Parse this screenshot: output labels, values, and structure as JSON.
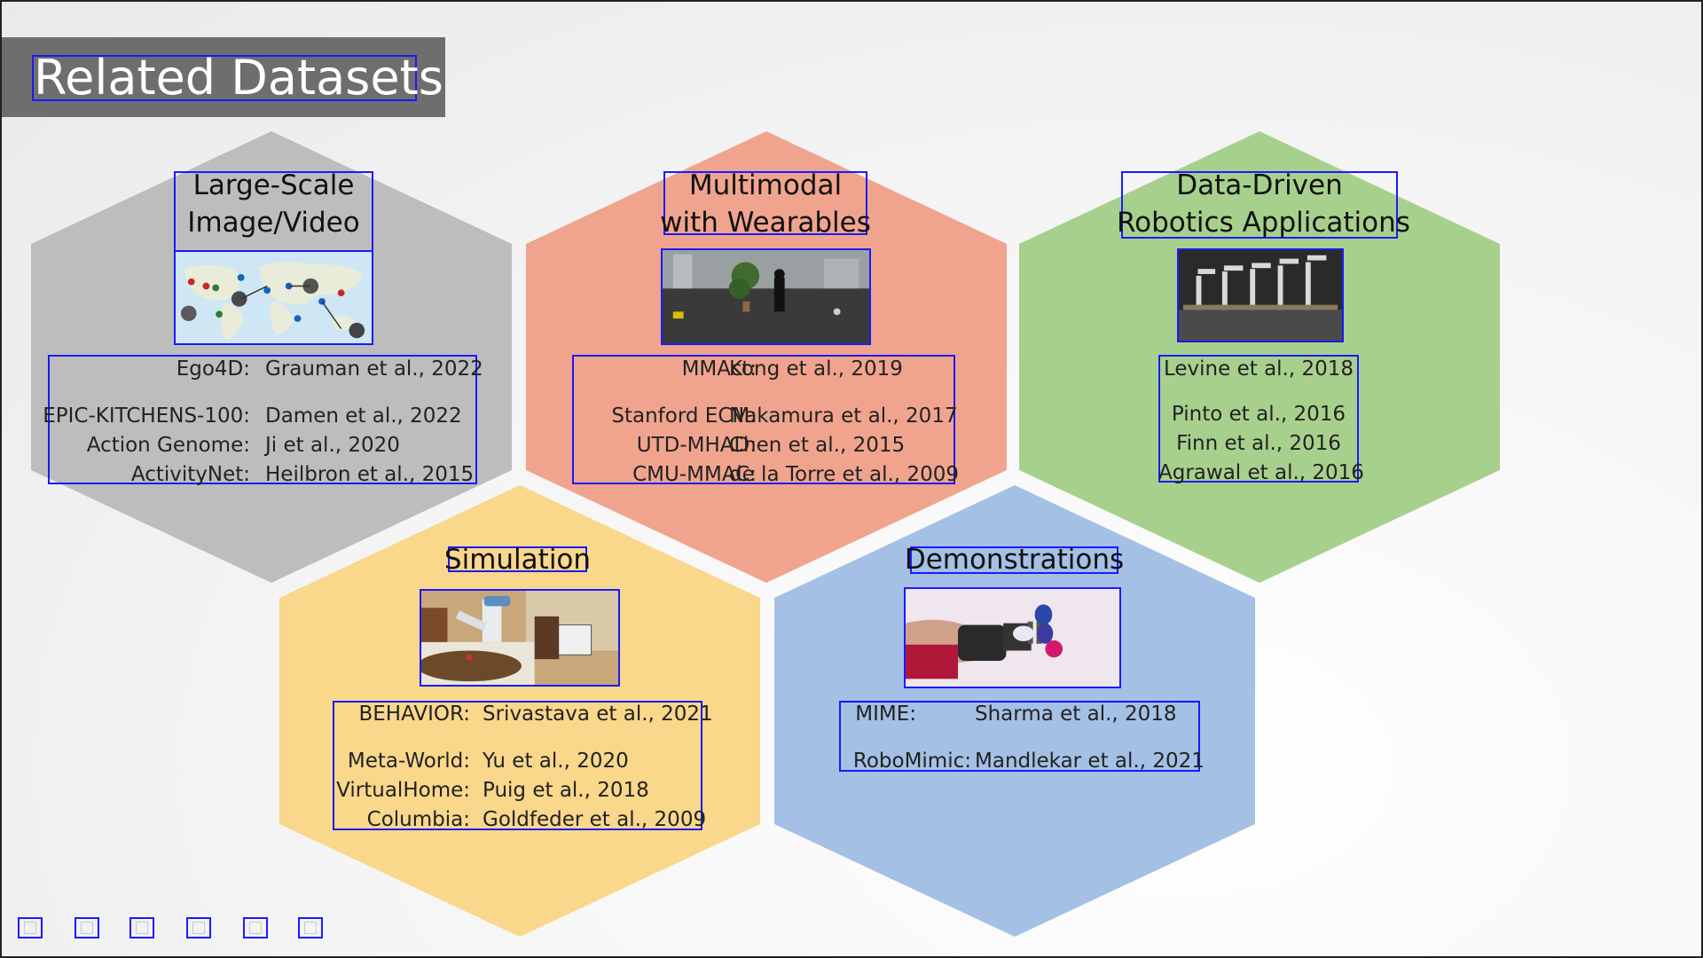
{
  "slide": {
    "title": "Related Datasets",
    "colors": {
      "gray_hex": "#bdbdbd",
      "red_hex": "#f0a48e",
      "green_hex": "#a8d08d",
      "yellow_hex": "#f9d78b",
      "blue_hex": "#a4c0e4",
      "box_border": "#1a1aff"
    }
  },
  "hexes": {
    "large_scale": {
      "title_line1": "Large-Scale",
      "title_line2": "Image/Video",
      "image": "world-map-with-location-pins",
      "refs": [
        {
          "name": "Ego4D:",
          "cite": "Grauman et al., 2022"
        },
        {
          "name": "EPIC-KITCHENS-100:",
          "cite": "Damen et al., 2022"
        },
        {
          "name": "Action Genome:",
          "cite": "Ji et al., 2020"
        },
        {
          "name": "ActivityNet:",
          "cite": "Heilbron et al., 2015"
        }
      ]
    },
    "multimodal": {
      "title_line1": "Multimodal",
      "title_line2": "with Wearables",
      "image": "person-walking-in-office-room",
      "refs": [
        {
          "name": "MMAct:",
          "cite": "Kong et al., 2019"
        },
        {
          "name": "Stanford ECM:",
          "cite": "Nakamura et al., 2017"
        },
        {
          "name": "UTD-MHAD:",
          "cite": "Chen et al., 2015"
        },
        {
          "name": "CMU-MMAC:",
          "cite": "de la Torre et al., 2009"
        }
      ]
    },
    "robotics": {
      "title_line1": "Data-Driven",
      "title_line2": "Robotics Applications",
      "image": "row-of-robot-arms",
      "refs": [
        "Levine et al., 2018",
        "Pinto et al., 2016",
        "Finn et al., 2016",
        "Agrawal et al., 2016"
      ]
    },
    "simulation": {
      "title": "Simulation",
      "image": "simulated-robot-in-kitchen",
      "refs": [
        {
          "name": "BEHAVIOR:",
          "cite": "Srivastava et al., 2021"
        },
        {
          "name": "Meta-World:",
          "cite": "Yu et al., 2020"
        },
        {
          "name": "VirtualHome:",
          "cite": "Puig et al., 2018"
        },
        {
          "name": "Columbia:",
          "cite": "Goldfeder et al., 2009"
        }
      ]
    },
    "demonstrations": {
      "title": "Demonstrations",
      "image": "robot-gripper-with-cups",
      "refs": [
        {
          "name": "MIME:",
          "cite": "Sharma et al., 2018"
        },
        {
          "name": "RoboMimic:",
          "cite": "Mandlekar et al., 2021"
        }
      ]
    }
  },
  "nav_icons": [
    "prev-slide-icon",
    "next-slide-icon",
    "pen-icon",
    "grid-icon",
    "zoom-icon",
    "more-icon"
  ]
}
